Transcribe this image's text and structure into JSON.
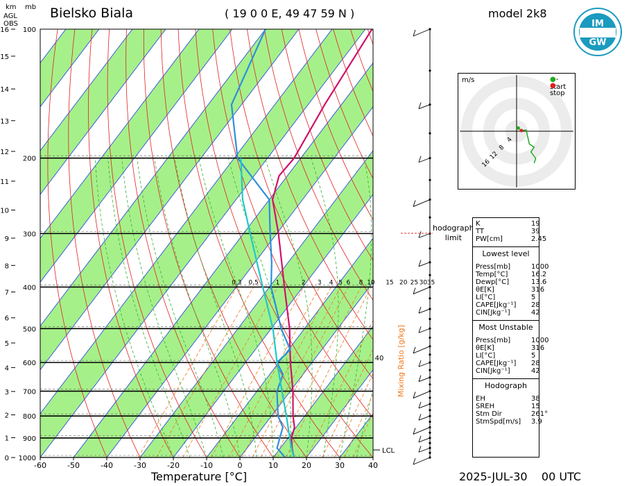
{
  "header": {
    "station": "Bielsko Biala",
    "coords": "( 19 0 0 E, 49 47 59 N )",
    "model": "model 2k8",
    "date": "2025-JUL-30",
    "time": "00 UTC",
    "logo_text": "IMGW"
  },
  "axes": {
    "km_label": "km",
    "agl_label": "AGL",
    "obs_label": "OBS",
    "mb_label": "mb",
    "temperature_label": "Temperature [°C]",
    "mixing_ratio_label": "Mixing Ratio [g/kg]",
    "lcl_label": "LCL",
    "km_ticks": [
      "0",
      "1",
      "2",
      "3",
      "4",
      "5",
      "6",
      "7",
      "8",
      "9",
      "10",
      "11",
      "12",
      "13",
      "14",
      "15",
      "16"
    ],
    "pressure_ticks": [
      "1000",
      "900",
      "800",
      "700",
      "600",
      "500",
      "400",
      "300",
      "200",
      "100"
    ],
    "temp_ticks": [
      "-60",
      "-50",
      "-40",
      "-30",
      "-20",
      "-10",
      "0",
      "10",
      "20",
      "30",
      "40"
    ],
    "mixing_ratio_ticks": [
      "0.3",
      "0.5",
      "1",
      "2",
      "3",
      "4",
      "5",
      "6",
      "8",
      "10",
      "15",
      "20",
      "25",
      "30",
      "35"
    ],
    "extra_label_40": "40"
  },
  "chart_data": {
    "type": "line",
    "title": "Bielsko Biala",
    "xlabel": "Temperature [°C]",
    "ylabel": "mb",
    "xlim": [
      -60,
      40
    ],
    "ylim": [
      1000,
      100
    ],
    "y_scale": "log",
    "skewed": true,
    "series": [
      {
        "name": "temperature",
        "color": "#d0106a",
        "points": [
          {
            "p": 1000,
            "t": 16.2
          },
          {
            "p": 950,
            "t": 13.5
          },
          {
            "p": 900,
            "t": 11.0
          },
          {
            "p": 850,
            "t": 9.5
          },
          {
            "p": 800,
            "t": 6.5
          },
          {
            "p": 700,
            "t": 0.8
          },
          {
            "p": 600,
            "t": -6.5
          },
          {
            "p": 500,
            "t": -14.5
          },
          {
            "p": 400,
            "t": -25.5
          },
          {
            "p": 300,
            "t": -39.5
          },
          {
            "p": 250,
            "t": -49.0
          },
          {
            "p": 220,
            "t": -52.5
          },
          {
            "p": 200,
            "t": -52.0
          },
          {
            "p": 150,
            "t": -55.0
          },
          {
            "p": 100,
            "t": -58.0
          }
        ]
      },
      {
        "name": "dewpoint",
        "color": "#2c8fdc",
        "points": [
          {
            "p": 1000,
            "t": 13.6
          },
          {
            "p": 950,
            "t": 9.0
          },
          {
            "p": 900,
            "t": 7.5
          },
          {
            "p": 850,
            "t": 6.0
          },
          {
            "p": 800,
            "t": 2.0
          },
          {
            "p": 700,
            "t": -4.0
          },
          {
            "p": 640,
            "t": -6.0
          },
          {
            "p": 600,
            "t": -10.5
          },
          {
            "p": 560,
            "t": -9.5
          },
          {
            "p": 500,
            "t": -17.0
          },
          {
            "p": 400,
            "t": -29.5
          },
          {
            "p": 350,
            "t": -35.0
          },
          {
            "p": 300,
            "t": -42.0
          },
          {
            "p": 250,
            "t": -50.0
          },
          {
            "p": 200,
            "t": -69.0
          },
          {
            "p": 150,
            "t": -83.0
          },
          {
            "p": 100,
            "t": -90.0
          }
        ]
      },
      {
        "name": "parcel",
        "color": "#1fc8c8",
        "points": [
          {
            "p": 1000,
            "t": 16.2
          },
          {
            "p": 950,
            "t": 13.3
          },
          {
            "p": 900,
            "t": 10.5
          },
          {
            "p": 800,
            "t": 4.5
          },
          {
            "p": 700,
            "t": -2.5
          },
          {
            "p": 600,
            "t": -10.5
          },
          {
            "p": 500,
            "t": -19.5
          },
          {
            "p": 400,
            "t": -32.0
          },
          {
            "p": 300,
            "t": -48.0
          },
          {
            "p": 250,
            "t": -58.0
          },
          {
            "p": 200,
            "t": -68.0
          }
        ]
      }
    ],
    "lcl_pressure": 960,
    "hodograph_limit_pressure": 300
  },
  "hodograph": {
    "unit": "m/s",
    "legend_start": "- start",
    "legend_stop": "- stop",
    "rings": [
      "4",
      "8",
      "12",
      "16"
    ],
    "start_color": "#22aa22",
    "stop_color": "#dd2222",
    "points": [
      [
        0.5,
        1.0
      ],
      [
        1.5,
        0.2
      ],
      [
        3.0,
        0.4
      ],
      [
        4.0,
        -4.0
      ],
      [
        5.5,
        -5.0
      ],
      [
        4.5,
        -6.5
      ],
      [
        6.0,
        -8.5
      ],
      [
        5.5,
        -10.0
      ]
    ],
    "limit_label": "hodograph\nlimit"
  },
  "indices": {
    "top": [
      {
        "k": "K",
        "v": "19"
      },
      {
        "k": "TT",
        "v": "39"
      },
      {
        "k": "PW[cm]",
        "v": "2.45"
      }
    ],
    "lowest_title": "Lowest level",
    "lowest": [
      {
        "k": "Press[mb]",
        "v": "1000"
      },
      {
        "k": "Temp[°C]",
        "v": "16.2"
      },
      {
        "k": "Dewp[°C]",
        "v": "13.6"
      },
      {
        "k": "θE[K]",
        "v": "316"
      },
      {
        "k": "LI[°C]",
        "v": "5"
      },
      {
        "k": "CAPE[Jkg⁻¹]",
        "v": "28"
      },
      {
        "k": "CIN[Jkg⁻¹]",
        "v": "42"
      }
    ],
    "unstable_title": "Most Unstable",
    "unstable": [
      {
        "k": "Press[mb]",
        "v": "1000"
      },
      {
        "k": "θE[K]",
        "v": "316"
      },
      {
        "k": "LI[°C]",
        "v": "5"
      },
      {
        "k": "CAPE[Jkg⁻¹]",
        "v": "28"
      },
      {
        "k": "CIN[Jkg⁻¹]",
        "v": "42"
      }
    ],
    "hodo_title": "Hodograph",
    "hodo": [
      {
        "k": "EH",
        "v": "38"
      },
      {
        "k": "SREH",
        "v": "15"
      },
      {
        "k": "Stm Dir",
        "v": "261°"
      },
      {
        "k": "StmSpd[m/s]",
        "v": "3.9"
      }
    ]
  },
  "colors": {
    "green_band": "#a6f08a",
    "isotherm": "#3a5fd6",
    "dry_adiabat": "#e02020",
    "moist_adiabat": "#30b030",
    "mixing_ratio": "#f07a20",
    "isobar": "#000000"
  }
}
